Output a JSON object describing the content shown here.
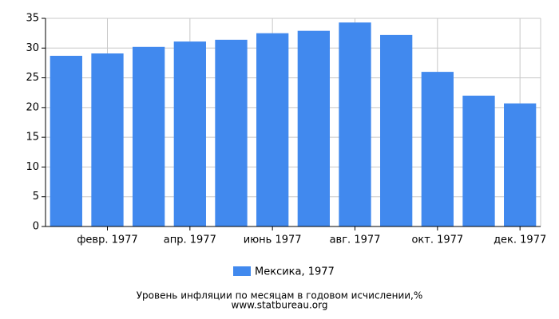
{
  "chart_data": {
    "type": "bar",
    "categories": [
      null,
      "февр. 1977",
      null,
      "апр. 1977",
      null,
      "июнь 1977",
      null,
      "авг. 1977",
      null,
      "окт. 1977",
      null,
      "дек. 1977"
    ],
    "series": [
      {
        "name": "Мексика, 1977",
        "color": "#4189ee",
        "values": [
          28.7,
          29.1,
          30.2,
          31.1,
          31.4,
          32.5,
          32.9,
          34.3,
          32.2,
          26.0,
          22.0,
          20.7
        ]
      }
    ],
    "ylim": [
      0,
      35
    ],
    "yticks": [
      0,
      5,
      10,
      15,
      20,
      25,
      30,
      35
    ],
    "grid": true,
    "legend": "bottom",
    "caption": "Уровень инфляции по месяцам в годовом исчислении,%",
    "source": "www.statbureau.org"
  }
}
